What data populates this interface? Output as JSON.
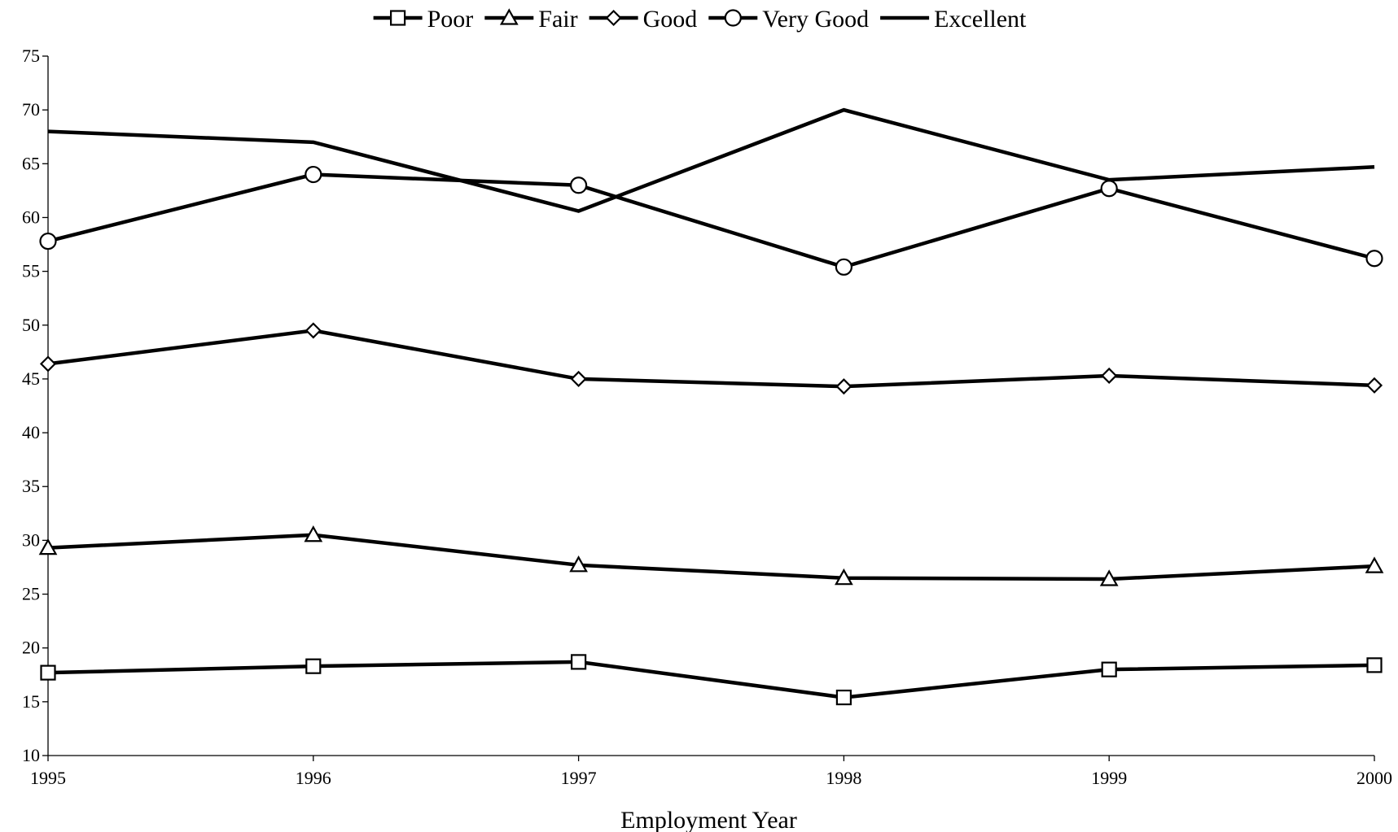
{
  "chart_data": {
    "type": "line",
    "title": "",
    "xlabel": "Employment Year",
    "ylabel": "",
    "x": [
      1995,
      1996,
      1997,
      1998,
      1999,
      2000
    ],
    "xlim": [
      1995,
      2000
    ],
    "ylim": [
      10,
      75
    ],
    "yticks": [
      10,
      15,
      20,
      25,
      30,
      35,
      40,
      45,
      50,
      55,
      60,
      65,
      70,
      75
    ],
    "grid": false,
    "legend_position": "top-center",
    "colors": {
      "line": "#000000",
      "marker_fill": "#ffffff",
      "background": "#ffffff"
    },
    "series": [
      {
        "name": "Poor",
        "marker": "square",
        "values": [
          17.7,
          18.3,
          18.7,
          15.4,
          18.0,
          18.4
        ]
      },
      {
        "name": "Fair",
        "marker": "triangle",
        "values": [
          29.3,
          30.5,
          27.7,
          26.5,
          26.4,
          27.6
        ]
      },
      {
        "name": "Good",
        "marker": "diamond",
        "values": [
          46.4,
          49.5,
          45.0,
          44.3,
          45.3,
          44.4
        ]
      },
      {
        "name": "Very Good",
        "marker": "circle",
        "values": [
          57.8,
          64.0,
          63.0,
          55.4,
          62.7,
          56.2
        ]
      },
      {
        "name": "Excellent",
        "marker": "none",
        "values": [
          68.0,
          67.0,
          60.6,
          70.0,
          63.5,
          64.7
        ]
      }
    ]
  }
}
